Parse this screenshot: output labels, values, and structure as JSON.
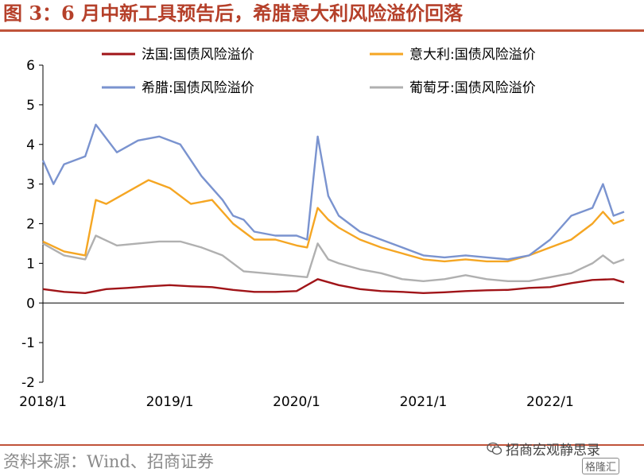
{
  "header": {
    "title": "图 3：6 月中新工具预告后，希腊意大利风险溢价回落"
  },
  "footer": {
    "source": "资料来源：Wind、招商证券",
    "watermark": "招商宏观静思录",
    "logo_text": "格隆汇"
  },
  "colors": {
    "france": "#A01418",
    "italy": "#F5A623",
    "greece": "#7A93CF",
    "portugal": "#B0B0B0",
    "accent": "#B5402A"
  },
  "chart_data": {
    "type": "line",
    "title": "",
    "xlabel": "",
    "ylabel": "",
    "ylim": [
      -2,
      6
    ],
    "yticks": [
      -2,
      -1,
      0,
      1,
      2,
      3,
      4,
      5,
      6
    ],
    "x_range": [
      "2018-01",
      "2022-08"
    ],
    "x_ticks": [
      "2018/1",
      "2019/1",
      "2020/1",
      "2021/1",
      "2022/1"
    ],
    "grid": false,
    "legend_position": "top",
    "series": [
      {
        "name": "法国:国债风险溢价",
        "color": "#A01418",
        "x": [
          "2018-01",
          "2018-03",
          "2018-05",
          "2018-07",
          "2018-09",
          "2018-11",
          "2019-01",
          "2019-03",
          "2019-05",
          "2019-07",
          "2019-09",
          "2019-11",
          "2020-01",
          "2020-03",
          "2020-05",
          "2020-07",
          "2020-09",
          "2020-11",
          "2021-01",
          "2021-03",
          "2021-05",
          "2021-07",
          "2021-09",
          "2021-11",
          "2022-01",
          "2022-03",
          "2022-05",
          "2022-07",
          "2022-08"
        ],
        "values": [
          0.35,
          0.28,
          0.25,
          0.35,
          0.38,
          0.42,
          0.45,
          0.42,
          0.4,
          0.33,
          0.28,
          0.28,
          0.3,
          0.6,
          0.45,
          0.35,
          0.3,
          0.28,
          0.25,
          0.27,
          0.3,
          0.32,
          0.33,
          0.38,
          0.4,
          0.5,
          0.58,
          0.6,
          0.52
        ]
      },
      {
        "name": "意大利:国债风险溢价",
        "color": "#F5A623",
        "x": [
          "2018-01",
          "2018-03",
          "2018-05",
          "2018-06",
          "2018-07",
          "2018-09",
          "2018-11",
          "2019-01",
          "2019-03",
          "2019-05",
          "2019-07",
          "2019-09",
          "2019-11",
          "2020-01",
          "2020-02",
          "2020-03",
          "2020-04",
          "2020-05",
          "2020-07",
          "2020-09",
          "2020-11",
          "2021-01",
          "2021-03",
          "2021-05",
          "2021-07",
          "2021-09",
          "2021-11",
          "2022-01",
          "2022-03",
          "2022-05",
          "2022-06",
          "2022-07",
          "2022-08"
        ],
        "values": [
          1.55,
          1.3,
          1.2,
          2.6,
          2.5,
          2.8,
          3.1,
          2.9,
          2.5,
          2.6,
          2.0,
          1.6,
          1.6,
          1.45,
          1.4,
          2.4,
          2.1,
          1.9,
          1.6,
          1.4,
          1.25,
          1.1,
          1.05,
          1.1,
          1.05,
          1.05,
          1.2,
          1.4,
          1.6,
          2.0,
          2.3,
          2.0,
          2.1
        ]
      },
      {
        "name": "希腊:国债风险溢价",
        "color": "#7A93CF",
        "x": [
          "2018-01",
          "2018-02",
          "2018-03",
          "2018-05",
          "2018-06",
          "2018-08",
          "2018-10",
          "2018-12",
          "2019-02",
          "2019-04",
          "2019-06",
          "2019-07",
          "2019-08",
          "2019-09",
          "2019-11",
          "2020-01",
          "2020-02",
          "2020-03",
          "2020-04",
          "2020-05",
          "2020-07",
          "2020-09",
          "2020-11",
          "2021-01",
          "2021-03",
          "2021-05",
          "2021-07",
          "2021-09",
          "2021-11",
          "2022-01",
          "2022-03",
          "2022-05",
          "2022-06",
          "2022-07",
          "2022-08"
        ],
        "values": [
          3.6,
          3.0,
          3.5,
          3.7,
          4.5,
          3.8,
          4.1,
          4.2,
          4.0,
          3.2,
          2.6,
          2.2,
          2.1,
          1.8,
          1.7,
          1.7,
          1.6,
          4.2,
          2.7,
          2.2,
          1.8,
          1.6,
          1.4,
          1.2,
          1.15,
          1.2,
          1.15,
          1.1,
          1.2,
          1.6,
          2.2,
          2.4,
          3.0,
          2.2,
          2.3
        ]
      },
      {
        "name": "葡萄牙:国债风险溢价",
        "color": "#B0B0B0",
        "x": [
          "2018-01",
          "2018-03",
          "2018-05",
          "2018-06",
          "2018-08",
          "2018-10",
          "2018-12",
          "2019-02",
          "2019-04",
          "2019-06",
          "2019-08",
          "2019-10",
          "2019-12",
          "2020-02",
          "2020-03",
          "2020-04",
          "2020-05",
          "2020-07",
          "2020-09",
          "2020-11",
          "2021-01",
          "2021-03",
          "2021-05",
          "2021-07",
          "2021-09",
          "2021-11",
          "2022-01",
          "2022-03",
          "2022-05",
          "2022-06",
          "2022-07",
          "2022-08"
        ],
        "values": [
          1.5,
          1.2,
          1.1,
          1.7,
          1.45,
          1.5,
          1.55,
          1.55,
          1.4,
          1.2,
          0.8,
          0.75,
          0.7,
          0.65,
          1.5,
          1.1,
          1.0,
          0.85,
          0.75,
          0.6,
          0.55,
          0.6,
          0.7,
          0.6,
          0.55,
          0.55,
          0.65,
          0.75,
          1.0,
          1.2,
          1.0,
          1.1
        ]
      }
    ]
  }
}
